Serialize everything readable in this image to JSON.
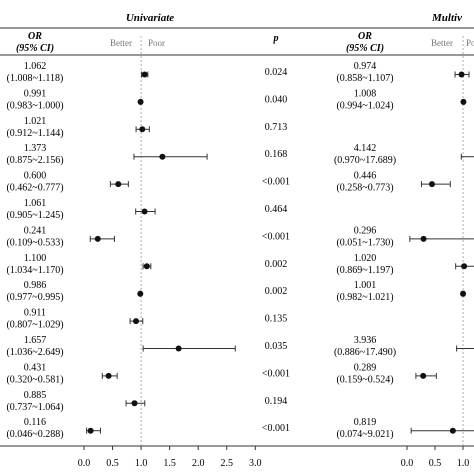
{
  "chart_data": {
    "type": "forest",
    "panels": [
      {
        "title": "Univariate",
        "or_header": "OR",
        "ci_header": "(95% CI)",
        "p_header": "p",
        "better_label": "Better",
        "poor_label": "Poor",
        "xlim": [
          0,
          3.0
        ],
        "xticks": [
          "0.0",
          "0.5",
          "1.0",
          "1.5",
          "2.0",
          "2.5",
          "3.0"
        ],
        "xtick_values": [
          0,
          0.5,
          1.0,
          1.5,
          2.0,
          2.5,
          3.0
        ],
        "reference_line": 1.0,
        "rows": [
          {
            "or": "1.062",
            "ci": "(1.008~1.118)",
            "p": "0.024",
            "est": 1.062,
            "lo": 1.008,
            "hi": 1.118
          },
          {
            "or": "0.991",
            "ci": "(0.983~1.000)",
            "p": "0.040",
            "est": 0.991,
            "lo": 0.983,
            "hi": 1.0
          },
          {
            "or": "1.021",
            "ci": "(0.912~1.144)",
            "p": "0.713",
            "est": 1.021,
            "lo": 0.912,
            "hi": 1.144
          },
          {
            "or": "1.373",
            "ci": "(0.875~2.156)",
            "p": "0.168",
            "est": 1.373,
            "lo": 0.875,
            "hi": 2.156
          },
          {
            "or": "0.600",
            "ci": "(0.462~0.777)",
            "p": "<0.001",
            "est": 0.6,
            "lo": 0.462,
            "hi": 0.777
          },
          {
            "or": "1.061",
            "ci": "(0.905~1.245)",
            "p": "0.464",
            "est": 1.061,
            "lo": 0.905,
            "hi": 1.245
          },
          {
            "or": "0.241",
            "ci": "(0.109~0.533)",
            "p": "<0.001",
            "est": 0.241,
            "lo": 0.109,
            "hi": 0.533
          },
          {
            "or": "1.100",
            "ci": "(1.034~1.170)",
            "p": "0.002",
            "est": 1.1,
            "lo": 1.034,
            "hi": 1.17
          },
          {
            "or": "0.986",
            "ci": "(0.977~0.995)",
            "p": "0.002",
            "est": 0.986,
            "lo": 0.977,
            "hi": 0.995
          },
          {
            "or": "0.911",
            "ci": "(0.807~1.029)",
            "p": "0.135",
            "est": 0.911,
            "lo": 0.807,
            "hi": 1.029
          },
          {
            "or": "1.657",
            "ci": "(1.036~2.649)",
            "p": "0.035",
            "est": 1.657,
            "lo": 1.036,
            "hi": 2.649
          },
          {
            "or": "0.431",
            "ci": "(0.320~0.581)",
            "p": "<0.001",
            "est": 0.431,
            "lo": 0.32,
            "hi": 0.581
          },
          {
            "or": "0.885",
            "ci": "(0.737~1.064)",
            "p": "0.194",
            "est": 0.885,
            "lo": 0.737,
            "hi": 1.064
          },
          {
            "or": "0.116",
            "ci": "(0.046~0.288)",
            "p": "<0.001",
            "est": 0.116,
            "lo": 0.046,
            "hi": 0.288
          }
        ]
      },
      {
        "title": "Multiv",
        "or_header": "OR",
        "ci_header": "(95% CI)",
        "better_label": "Better",
        "poor_label": "Poor",
        "xlim": [
          0,
          1.0
        ],
        "xticks": [
          "0.0",
          "0.5",
          "1.0"
        ],
        "xtick_values": [
          0,
          0.5,
          1.0
        ],
        "reference_line": 1.0,
        "rows": [
          {
            "or": "0.974",
            "ci": "(0.858~1.107)",
            "est": 0.974,
            "lo": 0.858,
            "hi": 1.107
          },
          {
            "or": "1.008",
            "ci": "(0.994~1.024)",
            "est": 1.008,
            "lo": 0.994,
            "hi": 1.024
          },
          {
            "or": "",
            "ci": "",
            "est": null,
            "lo": null,
            "hi": null
          },
          {
            "or": "4.142",
            "ci": "(0.970~17.689)",
            "est": 4.142,
            "lo": 0.97,
            "hi": 17.689
          },
          {
            "or": "0.446",
            "ci": "(0.258~0.773)",
            "est": 0.446,
            "lo": 0.258,
            "hi": 0.773
          },
          {
            "or": "",
            "ci": "",
            "est": null,
            "lo": null,
            "hi": null
          },
          {
            "or": "0.296",
            "ci": "(0.051~1.730)",
            "est": 0.296,
            "lo": 0.051,
            "hi": 1.73
          },
          {
            "or": "1.020",
            "ci": "(0.869~1.197)",
            "est": 1.02,
            "lo": 0.869,
            "hi": 1.197
          },
          {
            "or": "1.001",
            "ci": "(0.982~1.021)",
            "est": 1.001,
            "lo": 0.982,
            "hi": 1.021
          },
          {
            "or": "",
            "ci": "",
            "est": null,
            "lo": null,
            "hi": null
          },
          {
            "or": "3.936",
            "ci": "(0.886~17.490)",
            "est": 3.936,
            "lo": 0.886,
            "hi": 17.49
          },
          {
            "or": "0.289",
            "ci": "(0.159~0.524)",
            "est": 0.289,
            "lo": 0.159,
            "hi": 0.524
          },
          {
            "or": "",
            "ci": "",
            "est": null,
            "lo": null,
            "hi": null
          },
          {
            "or": "0.819",
            "ci": "(0.074~9.021)",
            "est": 0.819,
            "lo": 0.074,
            "hi": 9.021
          }
        ]
      }
    ]
  }
}
